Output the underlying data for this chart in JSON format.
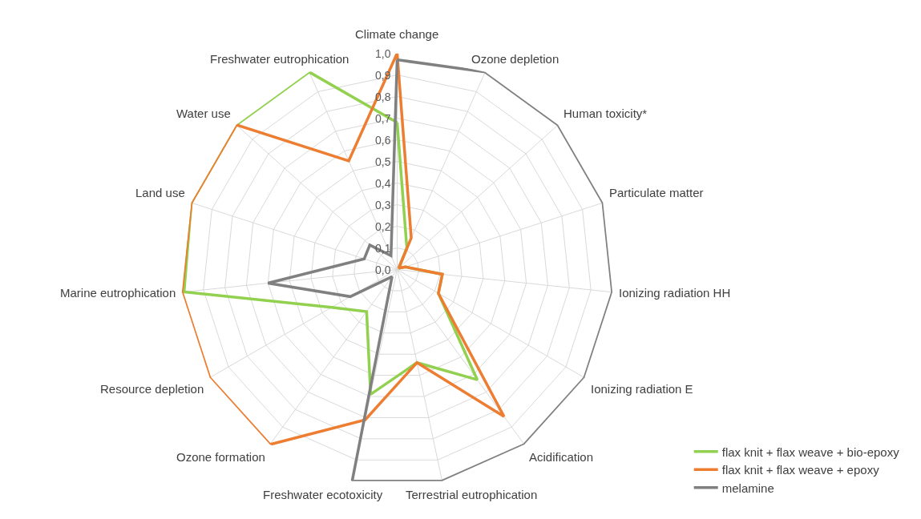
{
  "chart_data": {
    "type": "radar",
    "categories": [
      "Climate change",
      "Ozone depletion",
      "Human toxicity*",
      "Particulate matter",
      "Ionizing radiation HH",
      "Ionizing radiation E",
      "Acidification",
      "Terrestrial eutrophication",
      "Freshwater ecotoxicity",
      "Ozone formation",
      "Resource depletion",
      "Marine eutrophication",
      "Land use",
      "Water use",
      "Freshwater eutrophication"
    ],
    "series": [
      {
        "name": "flax knit + flax weave + bio-epoxy",
        "color": "#92d050",
        "values": [
          0.68,
          0.11,
          0.01,
          0.04,
          0.21,
          0.22,
          0.63,
          0.44,
          0.59,
          0.24,
          0.35,
          0.99,
          1.0,
          1.0,
          1.0
        ]
      },
      {
        "name": "flax knit + flax weave + epoxy",
        "color": "#ed7d31",
        "values": [
          1.0,
          0.16,
          0.01,
          0.04,
          0.21,
          0.22,
          0.84,
          0.44,
          0.71,
          1.0,
          1.0,
          1.0,
          1.0,
          1.0,
          0.55
        ]
      },
      {
        "name": "melamine",
        "color": "#808080",
        "values": [
          0.97,
          1.0,
          1.0,
          1.0,
          1.0,
          1.0,
          1.0,
          1.0,
          1.0,
          0.04,
          0.25,
          0.6,
          0.16,
          0.17,
          0.07
        ]
      }
    ],
    "ylim": [
      0,
      1.0
    ],
    "yticks": [
      {
        "value": 0,
        "label": "0,0"
      },
      {
        "value": 0.1,
        "label": "0,1"
      },
      {
        "value": 0.2,
        "label": "0,2"
      },
      {
        "value": 0.3,
        "label": "0,3"
      },
      {
        "value": 0.4,
        "label": "0,4"
      },
      {
        "value": 0.5,
        "label": "0,5"
      },
      {
        "value": 0.6,
        "label": "0,6"
      },
      {
        "value": 0.7,
        "label": "0,7"
      },
      {
        "value": 0.8,
        "label": "0,8"
      },
      {
        "value": 0.9,
        "label": "0,9"
      },
      {
        "value": 1.0,
        "label": "1,0"
      }
    ],
    "grid": true,
    "legend": "bottom right",
    "marker": "none",
    "line_style": "solid"
  }
}
